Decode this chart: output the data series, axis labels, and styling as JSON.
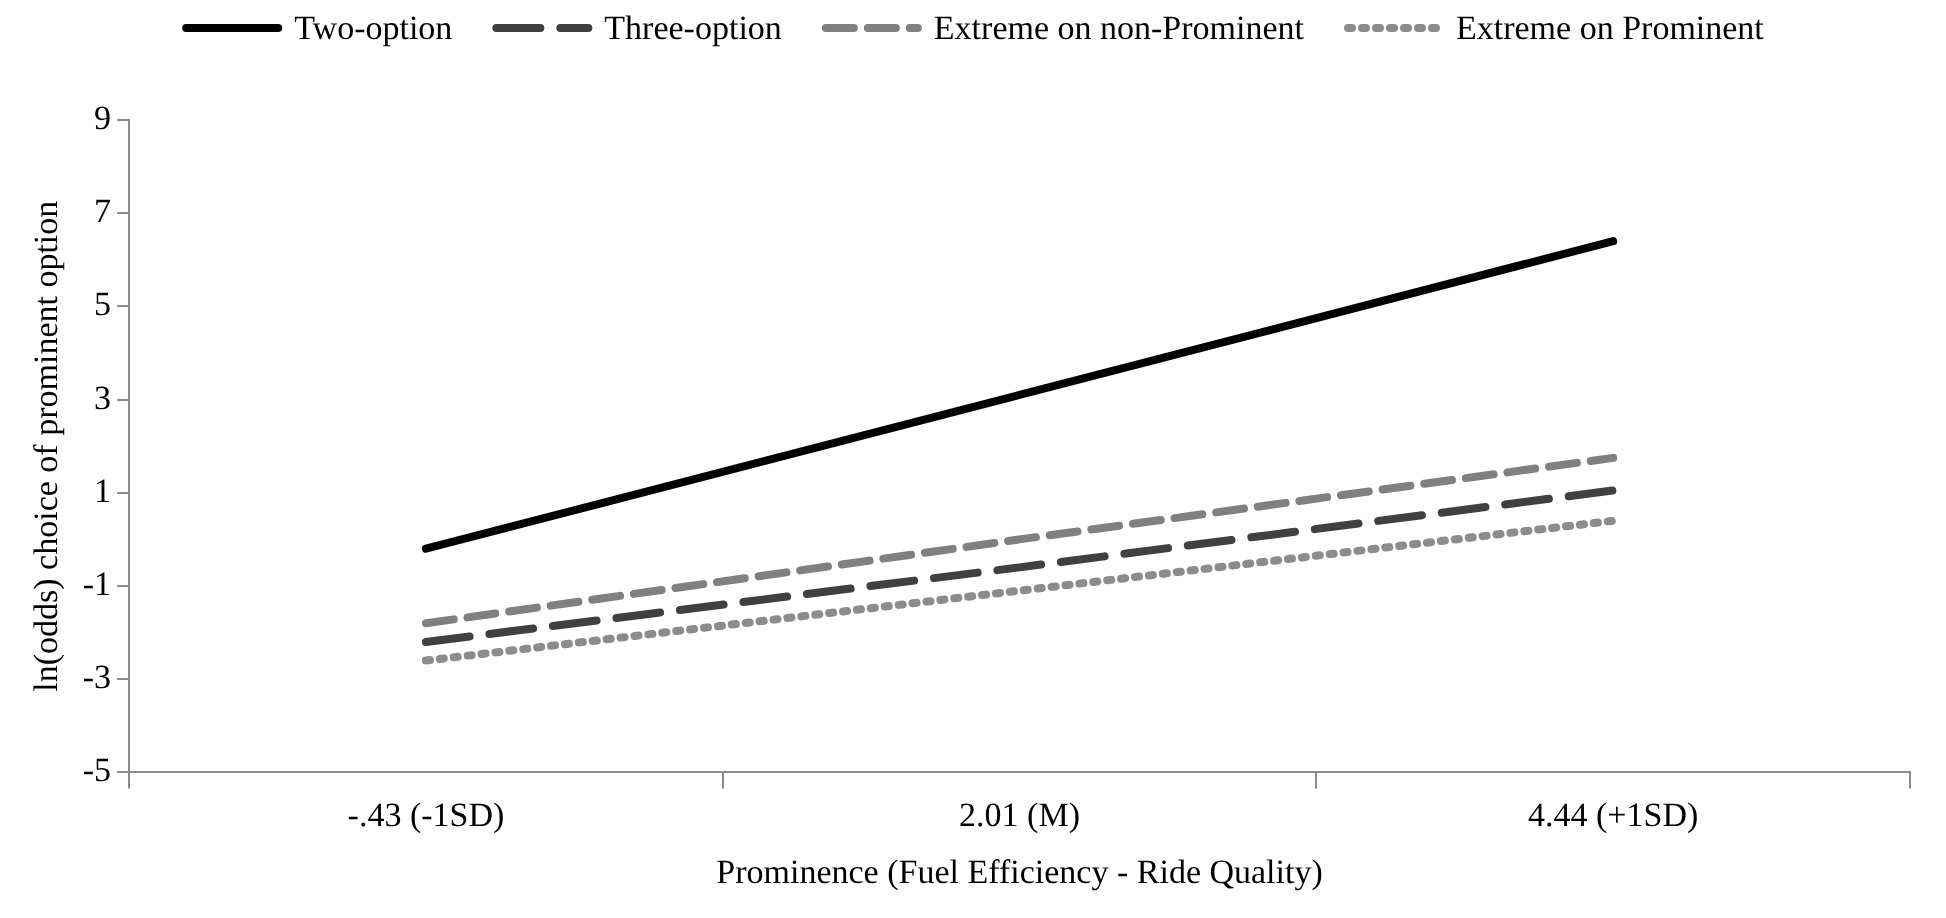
{
  "chart_data": {
    "type": "line",
    "xlabel": "Prominence (Fuel Efficiency - Ride Quality)",
    "ylabel": "ln(odds) choice of prominent option",
    "categories": [
      "-.43 (-1SD)",
      "2.01 (M)",
      "4.44 (+1SD)"
    ],
    "series": [
      {
        "name": "Two-option",
        "color": "#000000",
        "line_style": "solid",
        "values": [
          -0.2,
          3.1,
          6.4
        ]
      },
      {
        "name": "Three-option",
        "color": "#404040",
        "line_style": "dashed",
        "values": [
          -2.2,
          -0.6,
          1.05
        ]
      },
      {
        "name": "Extreme on non-Prominent",
        "color": "#808080",
        "line_style": "dashed",
        "values": [
          -1.8,
          0,
          1.75
        ]
      },
      {
        "name": "Extreme on Prominent",
        "color": "#8c8c8c",
        "line_style": "dotted",
        "values": [
          -2.6,
          -1.1,
          0.4
        ]
      }
    ],
    "ylim": [
      -5,
      9
    ],
    "yticks": [
      -5,
      -3,
      -1,
      1,
      3,
      5,
      7,
      9
    ],
    "grid": false,
    "legend": "top",
    "marker": "none"
  }
}
